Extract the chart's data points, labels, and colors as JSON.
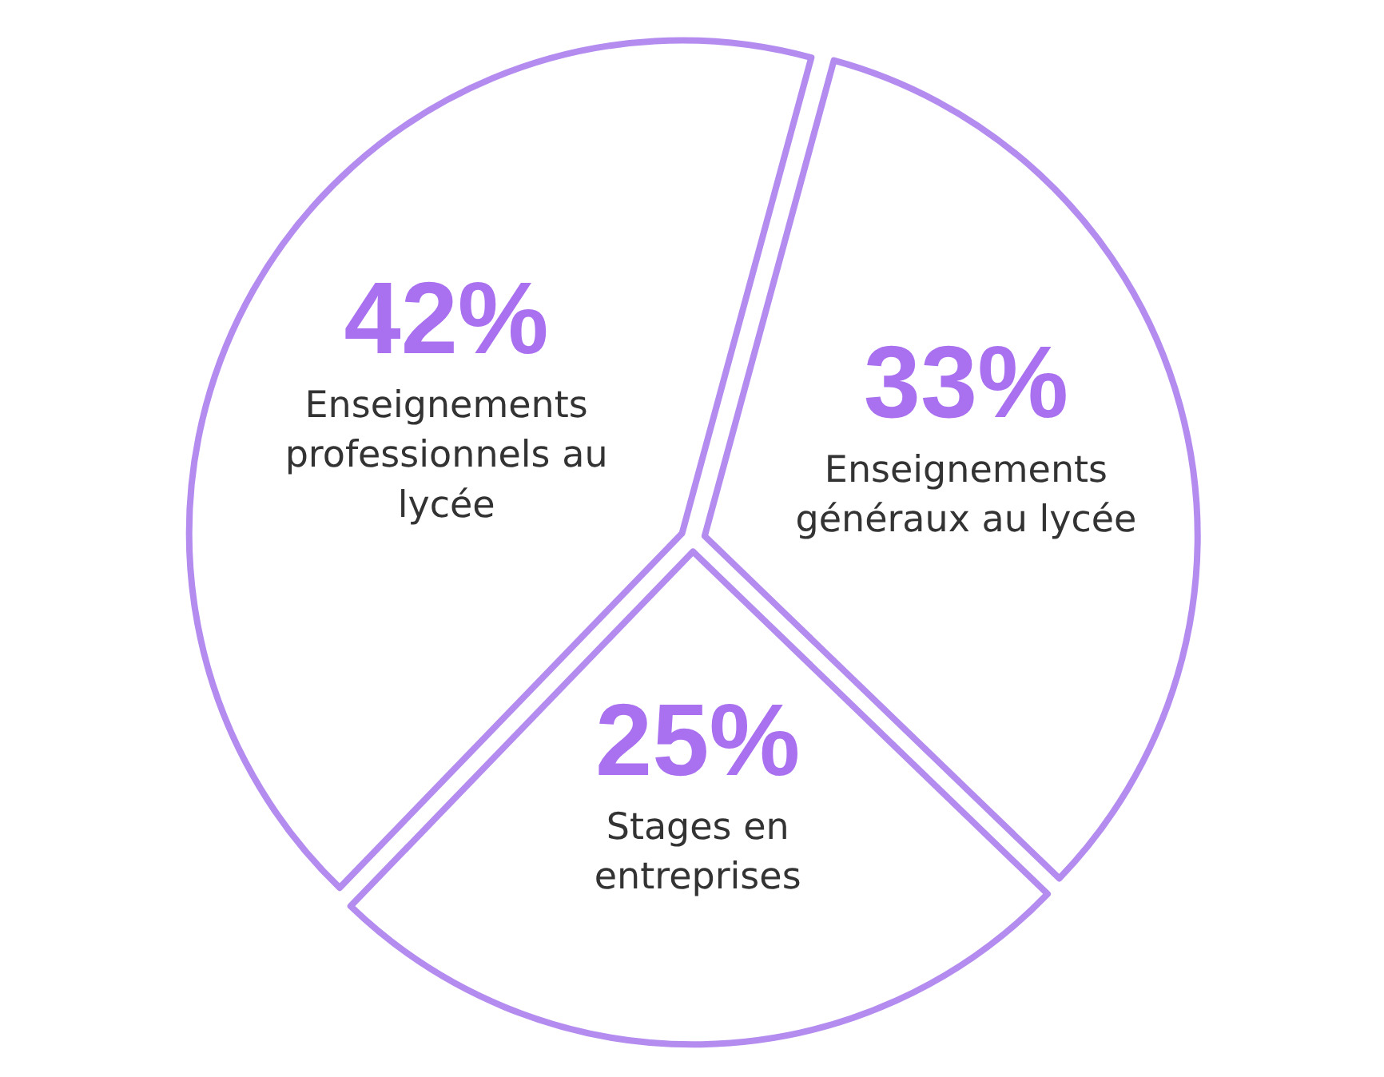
{
  "chart_data": {
    "type": "pie",
    "categories": [
      "Enseignements professionnels au lycée",
      "Enseignements généraux au lycée",
      "Stages en entreprises"
    ],
    "values": [
      42,
      33,
      25
    ],
    "colors": [
      "#b48cf0",
      "#b48cf0",
      "#b48cf0"
    ],
    "value_labels": [
      "42%",
      "33%",
      "25%"
    ]
  }
}
